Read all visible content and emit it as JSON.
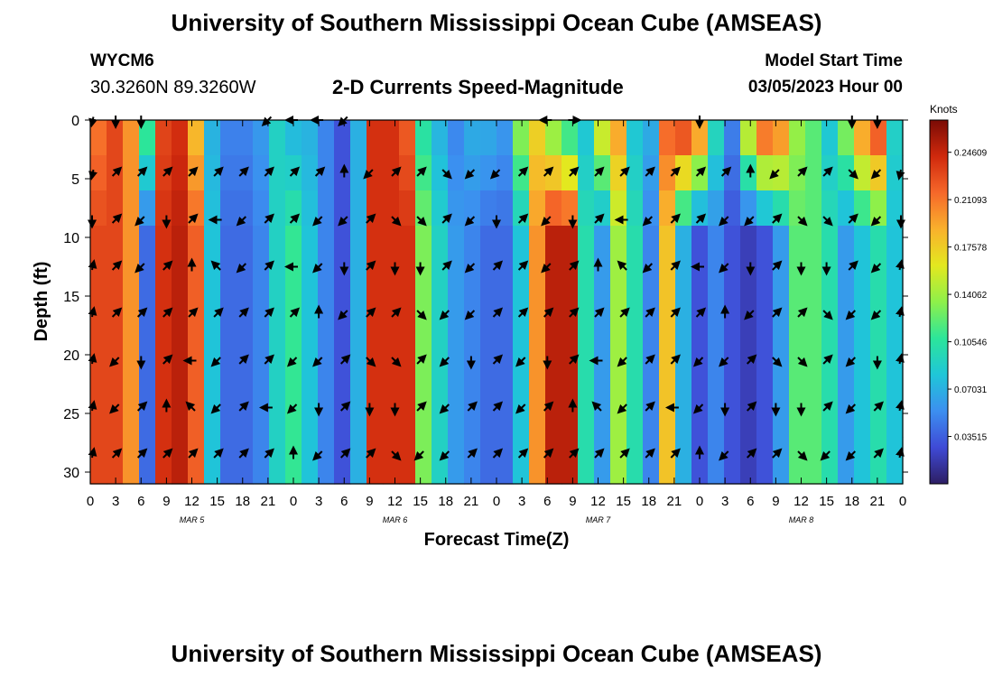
{
  "header": {
    "title": "University of Southern Mississippi Ocean Cube (AMSEAS)",
    "station_id": "WYCM6",
    "coordinates": "30.3260N  89.3260W",
    "plot_title": "2-D Currents Speed-Magnitude",
    "model_start_label": "Model Start Time",
    "model_start_value": "03/05/2023 Hour 00"
  },
  "footer": {
    "title": "University of Southern Mississippi Ocean Cube (AMSEAS)"
  },
  "colors": {
    "colormap": [
      "#2d1e63",
      "#3f4ad6",
      "#3c8ff0",
      "#1fc6d8",
      "#2ce59a",
      "#8ef04a",
      "#e3e81f",
      "#f9b12c",
      "#f6682a",
      "#d0290d",
      "#7a0b05"
    ]
  },
  "chart_data": {
    "type": "heatmap",
    "title": "2-D Currents Speed-Magnitude",
    "xlabel": "Forecast Time(Z)",
    "ylabel": "Depth (ft)",
    "x_ticks": [
      "0",
      "3",
      "6",
      "9",
      "12",
      "15",
      "18",
      "21",
      "0",
      "3",
      "6",
      "9",
      "12",
      "15",
      "18",
      "21",
      "0",
      "3",
      "6",
      "9",
      "12",
      "15",
      "18",
      "21",
      "0",
      "3",
      "6",
      "9",
      "12",
      "15",
      "18",
      "21",
      "0"
    ],
    "x_range_hours": [
      0,
      96
    ],
    "day_labels": [
      {
        "label": "MAR 5",
        "hour": 12
      },
      {
        "label": "MAR 6",
        "hour": 36
      },
      {
        "label": "MAR 7",
        "hour": 60
      },
      {
        "label": "MAR 8",
        "hour": 84
      }
    ],
    "y_ticks": [
      "0",
      "5",
      "10",
      "15",
      "20",
      "25",
      "30"
    ],
    "ylim_ft": [
      0,
      31
    ],
    "colorbar": {
      "label": "Knots",
      "ticks": [
        "0.03515",
        "0.07031",
        "0.10546",
        "0.14062",
        "0.17578",
        "0.21093",
        "0.24609"
      ],
      "range": [
        0,
        0.27
      ]
    },
    "depths_ft": [
      0,
      3,
      6,
      9,
      12,
      15,
      18,
      21,
      24,
      27,
      31
    ],
    "surface_speed_knots": [
      0.21,
      0.23,
      0.2,
      0.12,
      0.23,
      0.24,
      0.18,
      0.07,
      0.05,
      0.05,
      0.06,
      0.09,
      0.07,
      0.07,
      0.05,
      0.03,
      0.07,
      0.24,
      0.24,
      0.22,
      0.1,
      0.07,
      0.05,
      0.07,
      0.07,
      0.06,
      0.14,
      0.17,
      0.12,
      0.09,
      0.08,
      0.17,
      0.2,
      0.08,
      0.07,
      0.22,
      0.25,
      0.22,
      0.1,
      0.05,
      0.17,
      0.24,
      0.22,
      0.14,
      0.12,
      0.08,
      0.14,
      0.21,
      0.24,
      0.09
    ],
    "mid_speed_knots": [
      0.23,
      0.23,
      0.2,
      0.04,
      0.24,
      0.25,
      0.22,
      0.08,
      0.04,
      0.04,
      0.05,
      0.09,
      0.11,
      0.08,
      0.05,
      0.03,
      0.07,
      0.24,
      0.24,
      0.24,
      0.13,
      0.09,
      0.06,
      0.05,
      0.04,
      0.04,
      0.08,
      0.2,
      0.25,
      0.25,
      0.1,
      0.06,
      0.14,
      0.1,
      0.05,
      0.18,
      0.07,
      0.03,
      0.05,
      0.03,
      0.02,
      0.03,
      0.06,
      0.12,
      0.12,
      0.1,
      0.06,
      0.08,
      0.1,
      0.08
    ],
    "arrow_columns_hours": [
      0,
      3,
      6,
      9,
      12,
      15,
      18,
      21,
      24,
      27,
      30,
      33,
      36,
      39,
      42,
      45,
      48,
      51,
      54,
      57,
      60,
      63,
      66,
      69,
      72,
      75,
      78,
      81,
      84,
      87,
      90,
      93,
      96
    ],
    "arrow_depths_ft": [
      0,
      4.5,
      8.5,
      12.5,
      16.5,
      20.5,
      24.5,
      28.5
    ],
    "surface_arrow_direction_deg": [
      225,
      180,
      180,
      null,
      null,
      null,
      null,
      225,
      270,
      270,
      225,
      null,
      null,
      null,
      null,
      null,
      null,
      null,
      270,
      90,
      null,
      null,
      null,
      null,
      180,
      null,
      null,
      null,
      null,
      null,
      180,
      180
    ],
    "column_arrow_direction_deg": [
      225,
      225,
      180,
      45,
      45,
      45,
      45,
      45,
      225,
      225,
      45,
      180,
      45,
      45,
      45,
      0,
      45,
      270,
      315,
      45,
      225,
      225,
      45,
      45,
      45,
      45,
      45,
      270,
      45,
      225,
      225,
      0,
      225,
      180,
      225,
      45,
      45,
      45,
      135,
      180,
      45,
      135,
      180,
      135,
      45,
      45,
      225,
      225
    ],
    "default_arrow_direction_deg": 225
  }
}
